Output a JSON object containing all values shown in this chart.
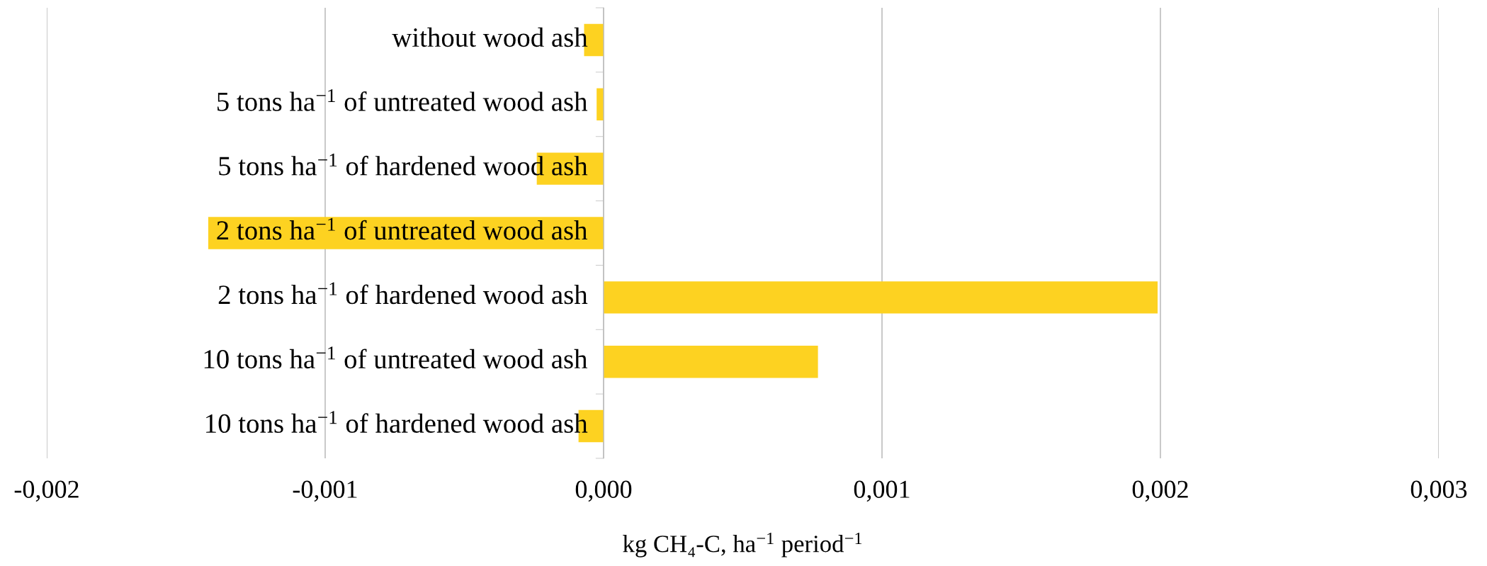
{
  "chart_data": {
    "type": "bar",
    "orientation": "horizontal",
    "xlabel": "kg CH₄-C, ha$^{−1}$ period$^{−1}$",
    "categories": [
      "without wood ash",
      "5 tons ha$^{−1}$ of untreated wood ash",
      "5 tons ha$^{−1}$ of hardened wood ash",
      "2 tons ha$^{−1}$ of untreated wood ash",
      "2 tons ha$^{−1}$ of hardened wood ash",
      "10 tons ha$^{−1}$ of untreated wood ash",
      "10 tons ha$^{−1}$ of hardened wood ash"
    ],
    "values": [
      -7e-05,
      -2.5e-05,
      -0.00024,
      -0.00142,
      0.00199,
      0.00077,
      -9e-05
    ],
    "color": "#fdd221",
    "xlim": [
      -0.002,
      0.003
    ],
    "xticks": [
      {
        "value": -0.002,
        "label": "-0,002"
      },
      {
        "value": -0.001,
        "label": "-0,001"
      },
      {
        "value": 0,
        "label": "0,000"
      },
      {
        "value": 0.001,
        "label": "0,001"
      },
      {
        "value": 0.002,
        "label": "0,002"
      },
      {
        "value": 0.003,
        "label": "0,003"
      }
    ],
    "grid": "x",
    "legend": false
  }
}
